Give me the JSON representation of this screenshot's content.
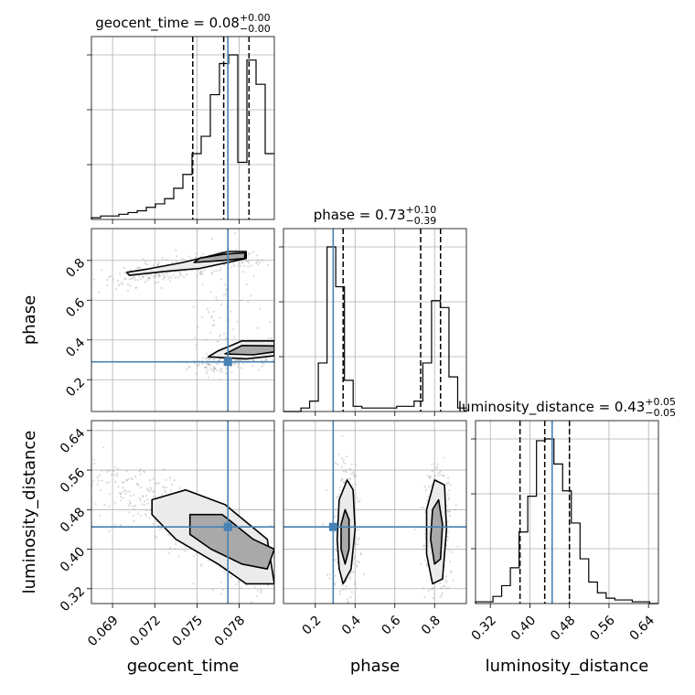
{
  "chart_data": {
    "type": "corner",
    "parameters": [
      "geocent_time",
      "phase",
      "luminosity_distance"
    ],
    "titles": [
      {
        "param": "geocent_time",
        "median": "0.08",
        "plus": "+0.00",
        "minus": "−0.00"
      },
      {
        "param": "phase",
        "median": "0.73",
        "plus": "+0.10",
        "minus": "−0.39"
      },
      {
        "param": "luminosity_distance",
        "median": "0.43",
        "plus": "+0.05",
        "minus": "−0.05"
      }
    ],
    "ranges": {
      "geocent_time": [
        0.0675,
        0.0805
      ],
      "phase": [
        0.04,
        0.96
      ],
      "luminosity_distance": [
        0.29,
        0.66
      ]
    },
    "ticks": {
      "geocent_time": [
        0.069,
        0.072,
        0.075,
        0.078
      ],
      "phase": [
        0.2,
        0.4,
        0.6,
        0.8
      ],
      "luminosity_distance": [
        0.32,
        0.4,
        0.48,
        0.56,
        0.64
      ]
    },
    "tick_labels": {
      "geocent_time": [
        "0.069",
        "0.072",
        "0.075",
        "0.078"
      ],
      "phase": [
        "0.2",
        "0.4",
        "0.6",
        "0.8"
      ],
      "luminosity_distance": [
        "0.32",
        "0.40",
        "0.48",
        "0.56",
        "0.64"
      ]
    },
    "truths": {
      "geocent_time": 0.0772,
      "phase": 0.29,
      "luminosity_distance": 0.445
    },
    "quantiles": {
      "geocent_time": [
        0.0747,
        0.0769,
        0.0787
      ],
      "phase": [
        0.34,
        0.73,
        0.83
      ],
      "luminosity_distance": [
        0.38,
        0.43,
        0.48
      ]
    },
    "histograms": {
      "geocent_time": [
        1,
        2,
        2,
        3,
        4,
        5,
        7,
        9,
        12,
        18,
        26,
        38,
        48,
        72,
        90,
        95,
        33,
        92,
        78,
        38
      ],
      "phase": [
        0,
        0,
        2,
        6,
        28,
        95,
        72,
        18,
        3,
        2,
        2,
        2,
        2,
        3,
        3,
        6,
        28,
        64,
        60,
        20,
        2
      ],
      "luminosity_distance": [
        1,
        1,
        4,
        10,
        20,
        40,
        60,
        91,
        92,
        78,
        63,
        45,
        25,
        12,
        6,
        3,
        2,
        2,
        1,
        1,
        0
      ]
    },
    "histogram_ranges": {
      "geocent_time": [
        0.0675,
        0.0805
      ],
      "phase": [
        0.04,
        0.96
      ],
      "luminosity_distance": [
        0.29,
        0.66
      ]
    },
    "sample_clusters": {
      "phase_vs_geocent_time": [
        {
          "from": [
            0.0695,
            0.7
          ],
          "to": [
            0.0785,
            0.82
          ],
          "spread": [
            0.0012,
            0.025
          ],
          "n": 260
        },
        {
          "from": [
            0.0755,
            0.26
          ],
          "to": [
            0.0805,
            0.36
          ],
          "spread": [
            0.001,
            0.025
          ],
          "n": 260
        },
        {
          "from": [
            0.076,
            0.38
          ],
          "to": [
            0.078,
            0.74
          ],
          "spread": [
            0.0012,
            0.12
          ],
          "n": 70
        }
      ],
      "luminosity_distance_vs_geocent_time": [
        {
          "from": [
            0.068,
            0.56
          ],
          "to": [
            0.0805,
            0.33
          ],
          "spread": [
            0.0014,
            0.025
          ],
          "n": 420
        }
      ],
      "luminosity_distance_vs_phase": [
        {
          "from": [
            0.35,
            0.32
          ],
          "to": [
            0.35,
            0.56
          ],
          "spread": [
            0.035,
            0.03
          ],
          "n": 220
        },
        {
          "from": [
            0.82,
            0.32
          ],
          "to": [
            0.82,
            0.56
          ],
          "spread": [
            0.035,
            0.03
          ],
          "n": 220
        }
      ]
    },
    "contours": {
      "phase_vs_geocent_time": [
        {
          "shape": [
            [
              0.0702,
              0.725
            ],
            [
              0.0728,
              0.745
            ],
            [
              0.0752,
              0.76
            ],
            [
              0.0772,
              0.79
            ],
            [
              0.0785,
              0.81
            ],
            [
              0.0785,
              0.845
            ],
            [
              0.0772,
              0.845
            ],
            [
              0.0758,
              0.82
            ],
            [
              0.074,
              0.79
            ],
            [
              0.0716,
              0.758
            ],
            [
              0.07,
              0.74
            ]
          ]
        },
        {
          "shape": [
            [
              0.0748,
              0.79
            ],
            [
              0.0768,
              0.8
            ],
            [
              0.0784,
              0.81
            ],
            [
              0.0784,
              0.838
            ],
            [
              0.077,
              0.832
            ],
            [
              0.0752,
              0.812
            ]
          ]
        },
        {
          "shape": [
            [
              0.0758,
              0.315
            ],
            [
              0.0785,
              0.305
            ],
            [
              0.0805,
              0.32
            ],
            [
              0.0805,
              0.395
            ],
            [
              0.0782,
              0.395
            ],
            [
              0.0765,
              0.345
            ]
          ]
        },
        {
          "shape": [
            [
              0.077,
              0.33
            ],
            [
              0.079,
              0.325
            ],
            [
              0.0805,
              0.34
            ],
            [
              0.0805,
              0.37
            ],
            [
              0.0782,
              0.372
            ]
          ]
        }
      ],
      "luminosity_distance_vs_geocent_time": [
        {
          "shape": [
            [
              0.0718,
              0.5
            ],
            [
              0.0742,
              0.52
            ],
            [
              0.077,
              0.49
            ],
            [
              0.08,
              0.42
            ],
            [
              0.0805,
              0.33
            ],
            [
              0.0785,
              0.33
            ],
            [
              0.0765,
              0.37
            ],
            [
              0.0735,
              0.42
            ],
            [
              0.0718,
              0.47
            ]
          ]
        },
        {
          "shape": [
            [
              0.0745,
              0.47
            ],
            [
              0.0768,
              0.47
            ],
            [
              0.079,
              0.42
            ],
            [
              0.0805,
              0.4
            ],
            [
              0.08,
              0.36
            ],
            [
              0.0782,
              0.37
            ],
            [
              0.076,
              0.4
            ],
            [
              0.0745,
              0.43
            ]
          ]
        }
      ],
      "luminosity_distance_vs_phase": [
        {
          "shape": [
            [
              0.34,
              0.33
            ],
            [
              0.38,
              0.36
            ],
            [
              0.4,
              0.44
            ],
            [
              0.39,
              0.52
            ],
            [
              0.36,
              0.54
            ],
            [
              0.32,
              0.5
            ],
            [
              0.31,
              0.42
            ],
            [
              0.32,
              0.36
            ]
          ]
        },
        {
          "shape": [
            [
              0.35,
              0.37
            ],
            [
              0.37,
              0.4
            ],
            [
              0.37,
              0.46
            ],
            [
              0.35,
              0.48
            ],
            [
              0.33,
              0.45
            ],
            [
              0.33,
              0.4
            ]
          ]
        },
        {
          "shape": [
            [
              0.79,
              0.33
            ],
            [
              0.84,
              0.34
            ],
            [
              0.86,
              0.44
            ],
            [
              0.85,
              0.53
            ],
            [
              0.8,
              0.54
            ],
            [
              0.76,
              0.48
            ],
            [
              0.76,
              0.39
            ]
          ]
        },
        {
          "shape": [
            [
              0.8,
              0.37
            ],
            [
              0.83,
              0.38
            ],
            [
              0.84,
              0.45
            ],
            [
              0.82,
              0.5
            ],
            [
              0.79,
              0.48
            ],
            [
              0.78,
              0.42
            ]
          ]
        }
      ]
    },
    "axis_labels": {
      "x": [
        "geocent_time",
        "phase",
        "luminosity_distance"
      ],
      "y": [
        "phase",
        "luminosity_distance"
      ]
    }
  }
}
